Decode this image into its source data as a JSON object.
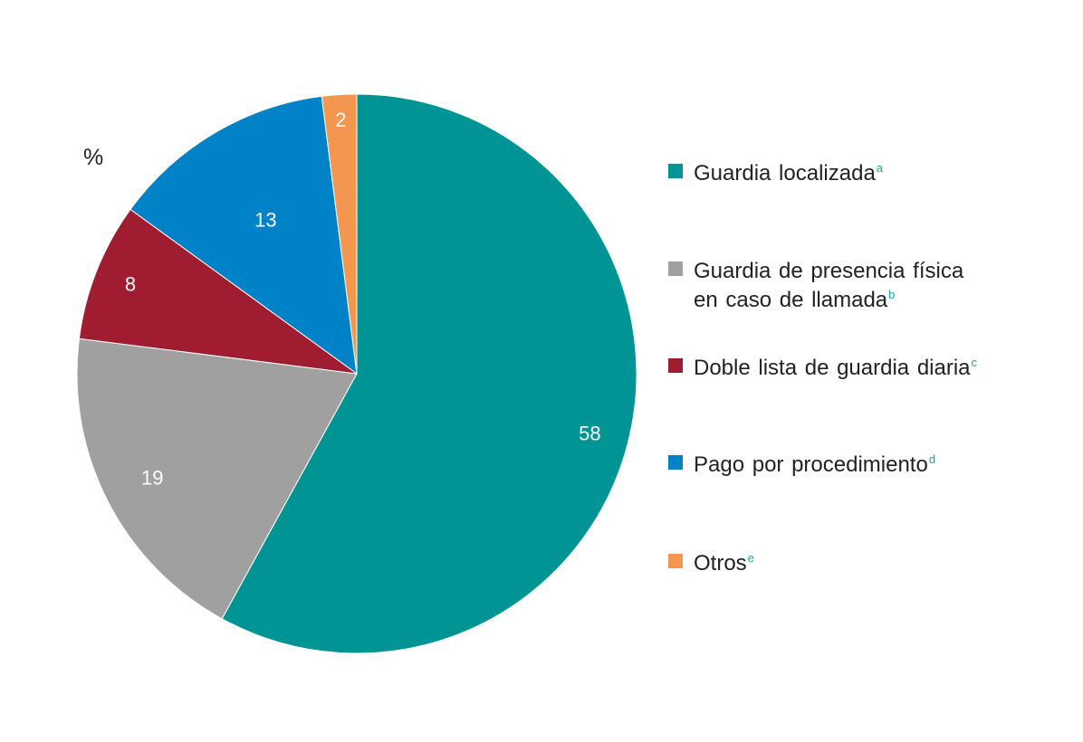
{
  "unit": "%",
  "colors": {
    "guardia_localizada": "#009494",
    "guardia_presencia": "#a0a0a0",
    "doble_lista": "#a01c31",
    "pago_procedimiento": "#0082c8",
    "otros": "#f39650",
    "footnote": "#19a7a7"
  },
  "chart_data": {
    "type": "pie",
    "start": "12 o'clock",
    "direction": "clockwise",
    "slices": [
      {
        "label": "Guardia localizada",
        "footnote": "a",
        "value": 58,
        "value_label": "58",
        "color": "#009494"
      },
      {
        "label": "Guardia de presencia física en caso de llamada",
        "footnote": "b",
        "value": 19,
        "value_label": "19",
        "color": "#a0a0a0"
      },
      {
        "label": "Doble lista de guardia diaria",
        "footnote": "c",
        "value": 8,
        "value_label": "8",
        "color": "#a01c31"
      },
      {
        "label": "Pago por procedimiento",
        "footnote": "d",
        "value": 13,
        "value_label": "13",
        "color": "#0082c8"
      },
      {
        "label": "Otros",
        "footnote": "e",
        "value": 2,
        "value_label": "2",
        "color": "#f39650"
      }
    ],
    "legend": {
      "placement": "right",
      "items": [
        {
          "lines": [
            "Guardia localizada"
          ],
          "footnote": "a",
          "color": "#009494"
        },
        {
          "lines": [
            "Guardia de presencia física",
            "en caso de llamada"
          ],
          "footnote": "b",
          "color": "#a0a0a0"
        },
        {
          "lines": [
            "Doble lista de guardia diaria"
          ],
          "footnote": "c",
          "color": "#a01c31"
        },
        {
          "lines": [
            "Pago por procedimiento"
          ],
          "footnote": "d",
          "color": "#0082c8"
        },
        {
          "lines": [
            "Otros"
          ],
          "footnote": "e",
          "color": "#f39650"
        }
      ]
    }
  }
}
